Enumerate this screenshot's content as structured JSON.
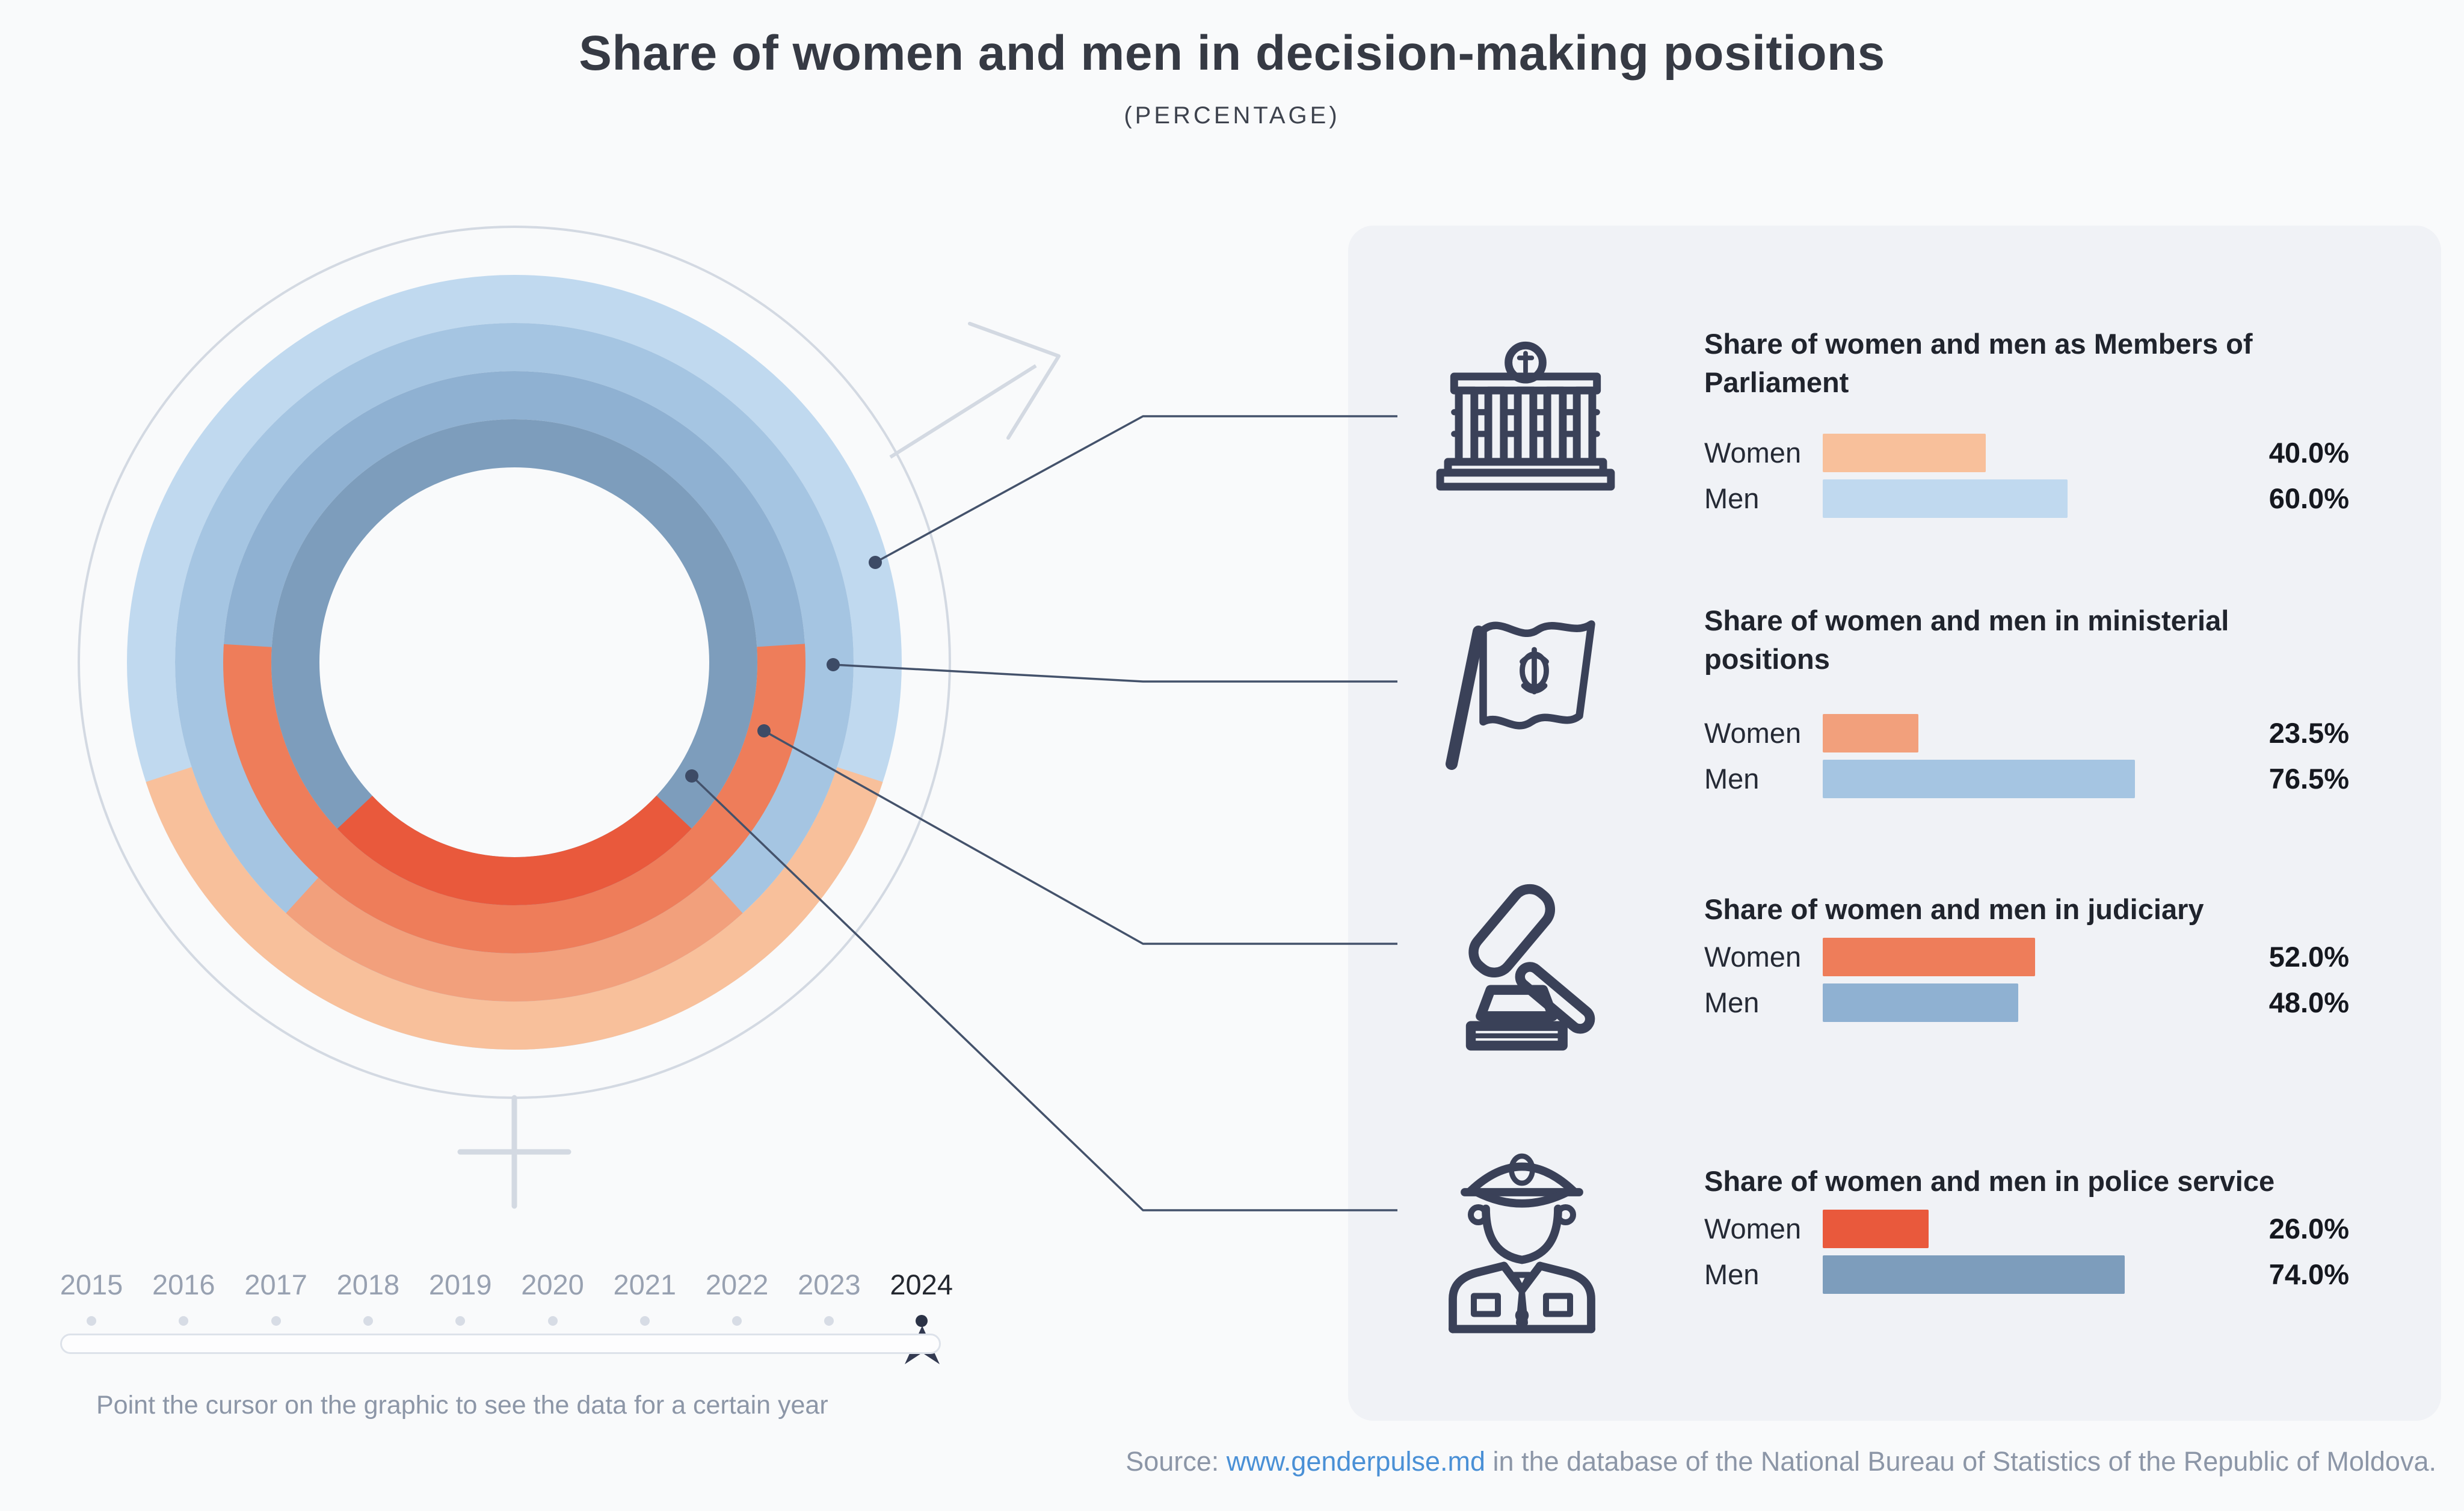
{
  "header": {
    "title": "Share of women and men in decision-making positions",
    "subtitle": "(PERCENTAGE)"
  },
  "chart_data": [
    {
      "type": "pie",
      "subtype": "concentric_donut_rings",
      "description": "Four concentric rings forming a combined gender symbol; in each ring the Women share is an arc centered at the bottom, the Men share fills the remainder. Rings listed outermost to innermost.",
      "year": "2024",
      "categories": [
        "Members of Parliament",
        "Ministerial positions",
        "Judiciary",
        "Police service"
      ],
      "series": [
        {
          "name": "Women",
          "values": [
            40.0,
            23.5,
            52.0,
            26.0
          ]
        },
        {
          "name": "Men",
          "values": [
            60.0,
            76.5,
            48.0,
            74.0
          ]
        }
      ],
      "women_colors": [
        "#f8c09b",
        "#f2a07c",
        "#ee7d5a",
        "#e9593c"
      ],
      "men_colors": [
        "#c0d9ef",
        "#a5c5e2",
        "#8fb1d2",
        "#7d9dbc"
      ],
      "legend_position": "right-panel",
      "grid": false
    },
    {
      "type": "bar",
      "orientation": "horizontal",
      "categories": [
        "Share of women and men as Members of Parliament",
        "Share of women and men in ministerial positions",
        "Share of women and men in judiciary",
        "Share of women and men in police service"
      ],
      "series": [
        {
          "name": "Women",
          "values": [
            40.0,
            23.5,
            52.0,
            26.0
          ],
          "labels": [
            "40.0%",
            "23.5%",
            "52.0%",
            "26.0%"
          ]
        },
        {
          "name": "Men",
          "values": [
            60.0,
            76.5,
            48.0,
            74.0
          ],
          "labels": [
            "60.0%",
            "76.5%",
            "48.0%",
            "74.0%"
          ]
        }
      ],
      "xlim": [
        0,
        100
      ]
    }
  ],
  "panel": {
    "items": [
      {
        "icon": "parliament-building",
        "title": "Share of women and men as Members of Parliament",
        "title_lines": [
          "Share of women and men as Members of",
          "Parliament"
        ],
        "rows": [
          {
            "label": "Women",
            "value": "40.0%",
            "pct": 40.0,
            "bar_color": "#f8c09b"
          },
          {
            "label": "Men",
            "value": "60.0%",
            "pct": 60.0,
            "bar_color": "#c0d9ef"
          }
        ]
      },
      {
        "icon": "moldova-flag",
        "title": "Share of women and men in ministerial positions",
        "title_lines": [
          "Share of women and men in ministerial",
          "positions"
        ],
        "rows": [
          {
            "label": "Women",
            "value": "23.5%",
            "pct": 23.5,
            "bar_color": "#f2a07c"
          },
          {
            "label": "Men",
            "value": "76.5%",
            "pct": 76.5,
            "bar_color": "#a5c5e2"
          }
        ]
      },
      {
        "icon": "gavel",
        "title": "Share of women and men in judiciary",
        "title_lines": [
          "Share of women and men in judiciary"
        ],
        "rows": [
          {
            "label": "Women",
            "value": "52.0%",
            "pct": 52.0,
            "bar_color": "#ee7d5a"
          },
          {
            "label": "Men",
            "value": "48.0%",
            "pct": 48.0,
            "bar_color": "#8fb1d2"
          }
        ]
      },
      {
        "icon": "police-officer",
        "title": "Share of women and men in police service",
        "title_lines": [
          "Share of women and men in police service"
        ],
        "rows": [
          {
            "label": "Women",
            "value": "26.0%",
            "pct": 26.0,
            "bar_color": "#e9593c"
          },
          {
            "label": "Men",
            "value": "74.0%",
            "pct": 74.0,
            "bar_color": "#7d9dbc"
          }
        ]
      }
    ]
  },
  "timeline": {
    "years": [
      "2015",
      "2016",
      "2017",
      "2018",
      "2019",
      "2020",
      "2021",
      "2022",
      "2023",
      "2024"
    ],
    "selected_year": "2024",
    "hint": "Point the cursor on the graphic to see the data for a certain year"
  },
  "footer": {
    "source_prefix": "Source: ",
    "source_link": "www.genderpulse.md",
    "source_suffix": " in the database of the National Bureau of Statistics of the Republic of Moldova."
  },
  "colors": {
    "page_bg": "#f9fafb",
    "panel_bg": "#f0f2f6",
    "icon_navy": "#3a4158",
    "connector_line": "#44526b",
    "gender_symbol": "#d3d9e2",
    "timeline_dot_active": "#2b3246",
    "timeline_dot_inactive": "#d7dce5",
    "year_active": "#23272f",
    "year_inactive": "#98a1b1",
    "muted_text": "#8c96a7",
    "link": "#4a90d6",
    "title_text": "#363a44"
  }
}
